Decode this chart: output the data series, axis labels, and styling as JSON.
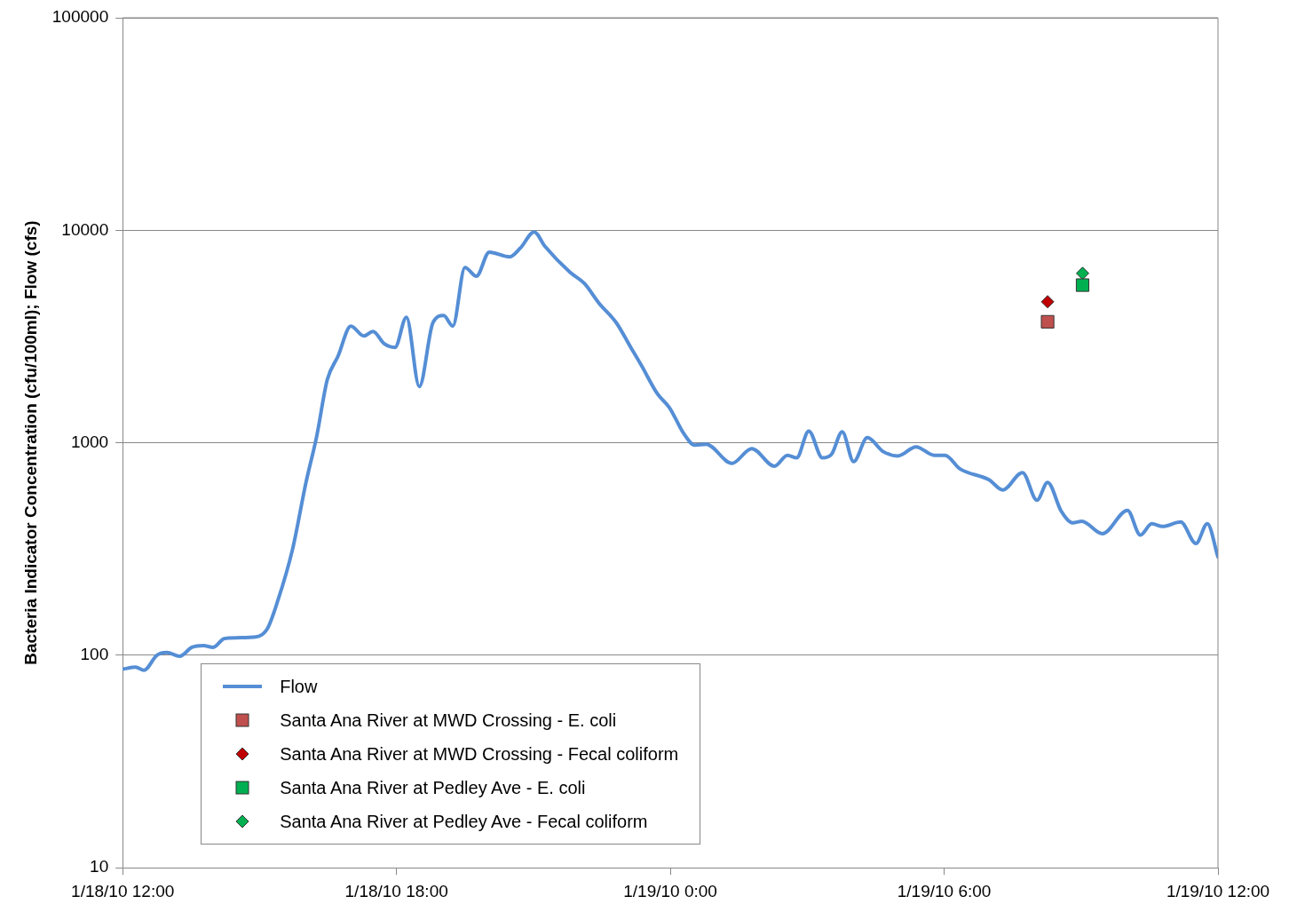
{
  "chart_data": {
    "type": "line",
    "ylabel": "Bacteria Indicator Concentration (cfu/100ml); Flow (cfs)",
    "log": "y",
    "grid": "y",
    "legend": "bottom left",
    "xlim": [
      "--01-18T12:00",
      "--01-19T12:00"
    ],
    "xticks": [
      {
        "value": "--01-18T12:00",
        "label": "1/18/10 12:00"
      },
      {
        "value": "--01-18T18:00",
        "label": "1/18/10 18:00"
      },
      {
        "value": "--01-19T00:00",
        "label": "1/19/10 0:00"
      },
      {
        "value": "--01-19T06:00",
        "label": "1/19/10 6:00"
      },
      {
        "value": "--01-19T12:00",
        "label": "1/19/10 12:00"
      }
    ],
    "ylim": [
      10,
      100000
    ],
    "yticks": [
      10,
      100,
      1000,
      10000,
      100000
    ],
    "series": [
      {
        "name": "Flow",
        "color": "#558ed5",
        "marker": "none",
        "line_style": "solid",
        "x": [
          "--01-18T12:00",
          "--01-18T12:17",
          "--01-18T12:28",
          "--01-18T12:45",
          "--01-18T12:58",
          "--01-18T13:15",
          "--01-18T13:31",
          "--01-18T13:46",
          "--01-18T13:59",
          "--01-18T14:14",
          "--01-18T14:55",
          "--01-18T15:10",
          "--01-18T15:24",
          "--01-18T15:43",
          "--01-18T16:01",
          "--01-18T16:15",
          "--01-18T16:29",
          "--01-18T16:43",
          "--01-18T17:00",
          "--01-18T17:17",
          "--01-18T17:29",
          "--01-18T17:44",
          "--01-18T17:58",
          "--01-18T18:13",
          "--01-18T18:30",
          "--01-18T18:48",
          "--01-18T19:02",
          "--01-18T19:14",
          "--01-18T19:30",
          "--01-18T19:45",
          "--01-18T20:02",
          "--01-18T20:29",
          "--01-18T20:43",
          "--01-18T21:01",
          "--01-18T21:15",
          "--01-18T21:48",
          "--01-18T22:07",
          "--01-18T22:26",
          "--01-18T22:49",
          "--01-18T23:08",
          "--01-18T23:22",
          "--01-18T23:43",
          "--01-18T23:59",
          "--01-19T00:18",
          "--01-19T00:32",
          "--01-19T00:47",
          "--01-19T01:21",
          "--01-19T01:47",
          "--01-19T02:17",
          "--01-19T02:34",
          "--01-19T02:46",
          "--01-19T03:02",
          "--01-19T03:20",
          "--01-19T03:32",
          "--01-19T03:46",
          "--01-19T04:01",
          "--01-19T04:19",
          "--01-19T04:40",
          "--01-19T04:59",
          "--01-19T05:23",
          "--01-19T05:47",
          "--01-19T06:01",
          "--01-19T06:21",
          "--01-19T06:59",
          "--01-19T07:17",
          "--01-19T07:43",
          "--01-19T08:02",
          "--01-19T08:16",
          "--01-19T08:34",
          "--01-19T08:49",
          "--01-19T09:01",
          "--01-19T09:28",
          "--01-19T10:01",
          "--01-19T10:18",
          "--01-19T10:33",
          "--01-19T10:47",
          "--01-19T11:11",
          "--01-19T11:31",
          "--01-19T11:46",
          "--01-19T12:00"
        ],
        "values": [
          86,
          88,
          85,
          100,
          103,
          99,
          109,
          111,
          109,
          120,
          122,
          133,
          181,
          312,
          651,
          1070,
          1980,
          2550,
          3540,
          3180,
          3340,
          2920,
          2810,
          3900,
          1840,
          3680,
          3970,
          3540,
          6680,
          6080,
          7890,
          7500,
          8260,
          9820,
          8420,
          6350,
          5620,
          4550,
          3670,
          2810,
          2310,
          1700,
          1460,
          1100,
          975,
          984,
          800,
          938,
          776,
          873,
          849,
          1135,
          849,
          883,
          1125,
          815,
          1057,
          908,
          867,
          957,
          873,
          873,
          753,
          670,
          600,
          724,
          537,
          651,
          476,
          420,
          427,
          373,
          481,
          368,
          416,
          404,
          424,
          336,
          416,
          290
        ]
      },
      {
        "name": "Santa Ana River at MWD Crossing - E. coli",
        "type": "scatter",
        "color": "#c0504d",
        "marker": "square",
        "x": [
          "--01-19T08:16"
        ],
        "values": [
          3710
        ]
      },
      {
        "name": "Santa Ana River at MWD Crossing - Fecal coliform",
        "type": "scatter",
        "color": "#c00000",
        "marker": "diamond",
        "x": [
          "--01-19T08:16"
        ],
        "values": [
          4610
        ]
      },
      {
        "name": "Santa Ana River at Pedley Ave - E. coli",
        "type": "scatter",
        "color": "#00b050",
        "marker": "square",
        "x": [
          "--01-19T09:02"
        ],
        "values": [
          5520
        ]
      },
      {
        "name": "Santa Ana River at Pedley Ave - Fecal coliform",
        "type": "scatter",
        "color": "#00b050",
        "marker": "diamond",
        "x": [
          "--01-19T09:02"
        ],
        "values": [
          6270
        ]
      }
    ]
  }
}
